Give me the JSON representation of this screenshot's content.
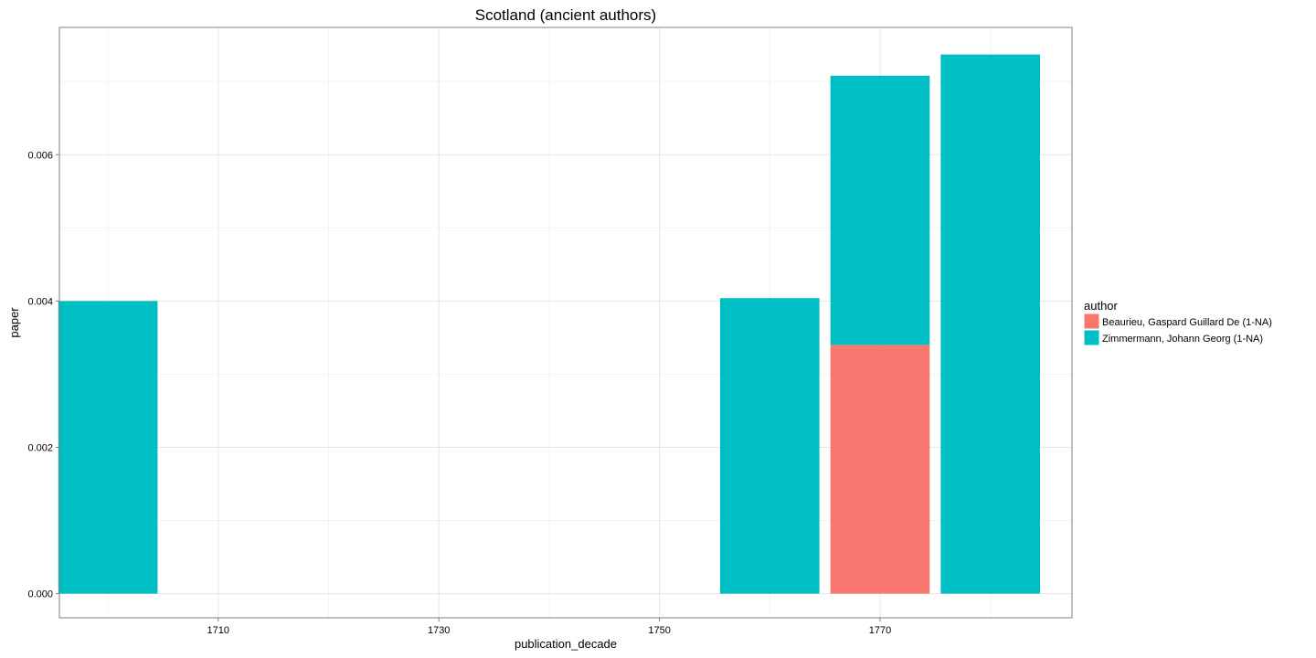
{
  "chart_data": {
    "type": "bar",
    "stacked": true,
    "title": "Scotland (ancient authors)",
    "xlabel": "publication_decade",
    "ylabel": "paper",
    "categories": [
      1700,
      1760,
      1770,
      1780
    ],
    "x_ticks": [
      1710,
      1730,
      1750,
      1770
    ],
    "x_tick_labels": [
      "1710",
      "1730",
      "1750",
      "1770"
    ],
    "xlim": [
      1695.6,
      1787.4
    ],
    "y_ticks": [
      0.0,
      0.002,
      0.004,
      0.006
    ],
    "y_tick_labels": [
      "0.000",
      "0.002",
      "0.004",
      "0.006"
    ],
    "ylim": [
      -0.00033,
      0.00774
    ],
    "bar_width": 9,
    "grid": true,
    "legend": {
      "title": "author",
      "placement": "right"
    },
    "series": [
      {
        "name": "Beaurieu, Gaspard Guillard De (1-NA)",
        "color": "#F8766D",
        "values": [
          0,
          0,
          0.0034,
          0
        ]
      },
      {
        "name": "Zimmermann, Johann Georg (1-NA)",
        "color": "#00BFC4",
        "values": [
          0.004,
          0.00404,
          0.00368,
          0.00737
        ]
      }
    ]
  }
}
